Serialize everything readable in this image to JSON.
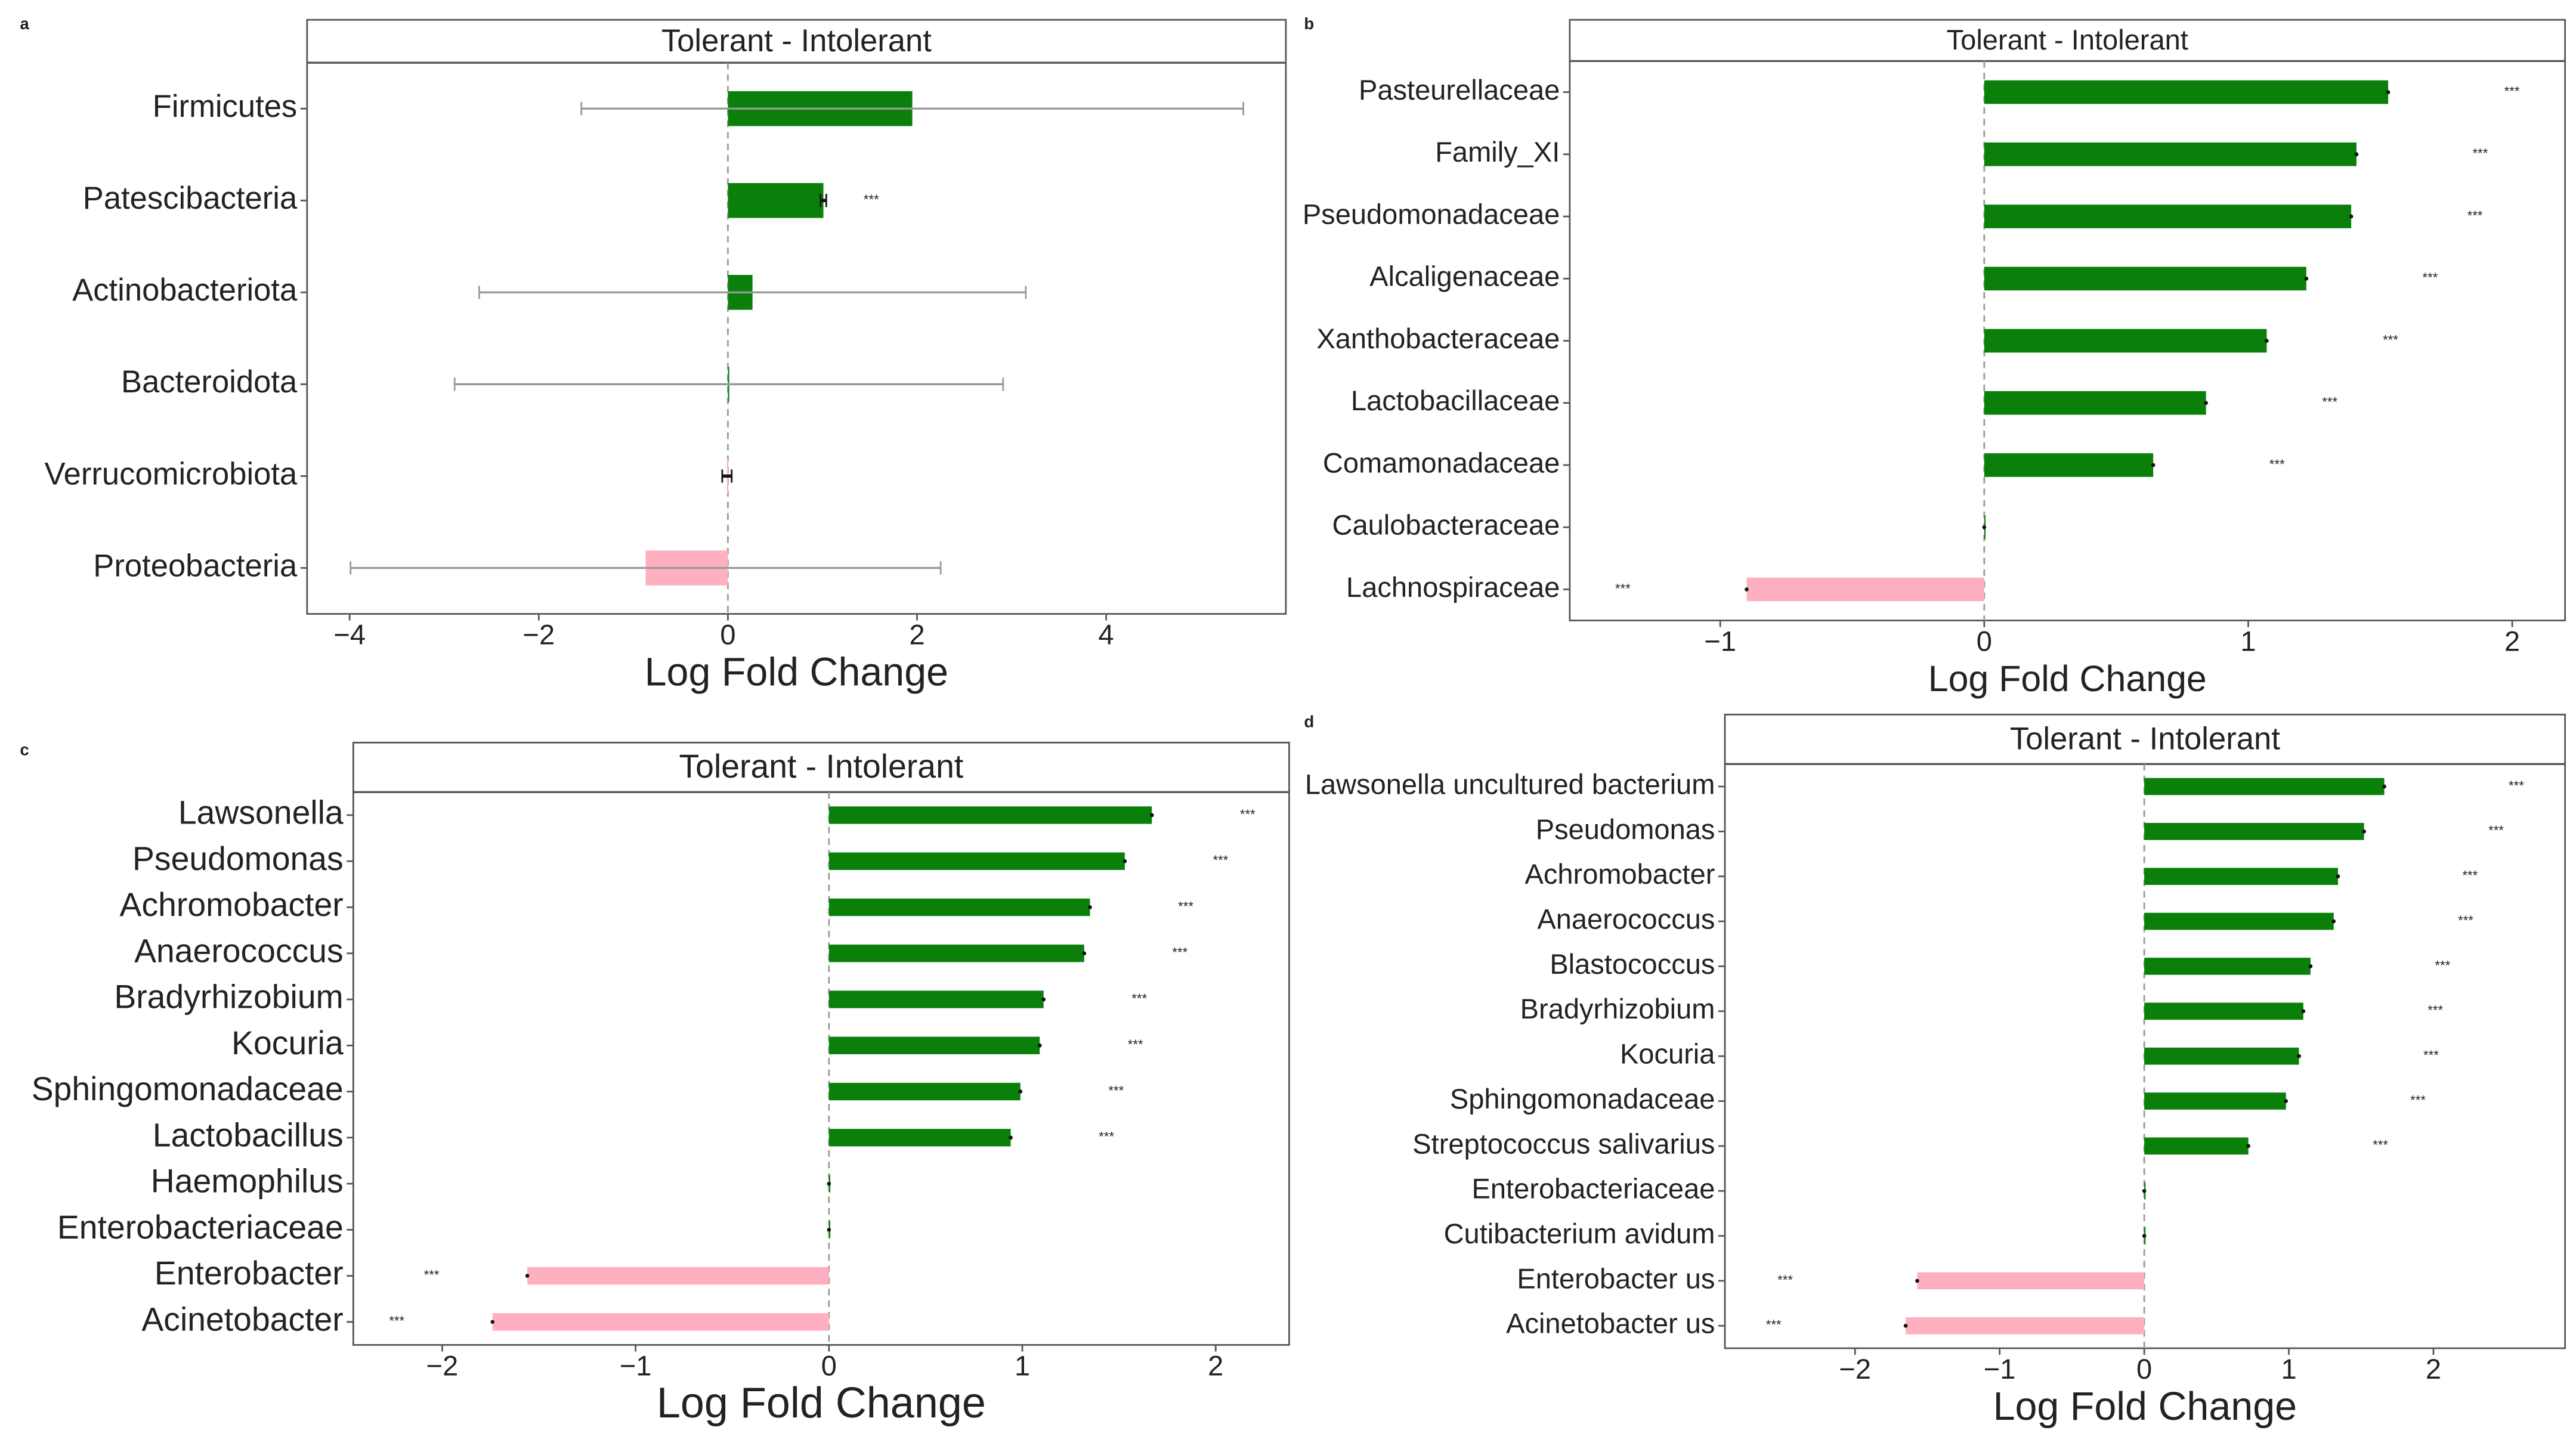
{
  "chart_data": [
    {
      "type": "bar",
      "orientation": "horizontal",
      "panel_label": "a",
      "title": "Tolerant - Intolerant",
      "xlabel": "Log Fold Change",
      "categories": [
        "Firmicutes",
        "Patescibacteria",
        "Actinobacteriota",
        "Bacteroidota",
        "Verrucomicrobiota",
        "Proteobacteria"
      ],
      "values": [
        1.95,
        1.01,
        0.26,
        0.01,
        -0.01,
        -0.87
      ],
      "errors": [
        3.5,
        0.03,
        2.89,
        2.9,
        0.05,
        3.12
      ],
      "annotations": [
        null,
        "***",
        null,
        null,
        null,
        null
      ],
      "xlim": [
        -4.45,
        5.9
      ],
      "xticks": [
        {
          "value": -4,
          "label": "−4"
        },
        {
          "value": -2,
          "label": "−2"
        },
        0,
        2,
        4
      ],
      "positive_color": "#0a800a",
      "negative_color": "#ffb0c0"
    },
    {
      "type": "bar",
      "orientation": "horizontal",
      "panel_label": "b",
      "title": "Tolerant - Intolerant",
      "xlabel": "Log Fold Change",
      "categories": [
        "Pasteurellaceae",
        "Family_XI",
        "Pseudomonadaceae",
        "Alcaligenaceae",
        "Xanthobacteraceae",
        "Lactobacillaceae",
        "Comamonadaceae",
        "Caulobacteraceae",
        "Lachnospiraceae"
      ],
      "values": [
        1.53,
        1.41,
        1.39,
        1.22,
        1.07,
        0.84,
        0.64,
        0,
        -0.9
      ],
      "annotations": [
        "***",
        "***",
        "***",
        "***",
        "***",
        "***",
        "***",
        null,
        "***"
      ],
      "xlim": [
        -1.57,
        2.2
      ],
      "xticks": [
        {
          "value": -1,
          "label": "−1"
        },
        0,
        1,
        2
      ],
      "positive_color": "#0a800a",
      "negative_color": "#ffb0c0"
    },
    {
      "type": "bar",
      "orientation": "horizontal",
      "panel_label": "c",
      "title": "Tolerant - Intolerant",
      "xlabel": "Log Fold Change",
      "categories": [
        "Lawsonella",
        "Pseudomonas",
        "Achromobacter",
        "Anaerococcus",
        "Bradyrhizobium",
        "Kocuria",
        "Sphingomonadaceae",
        "Lactobacillus",
        "Haemophilus",
        "Enterobacteriaceae",
        "Enterobacter",
        "Acinetobacter"
      ],
      "values": [
        1.67,
        1.53,
        1.35,
        1.32,
        1.11,
        1.09,
        0.99,
        0.94,
        0,
        0,
        -1.56,
        -1.74
      ],
      "annotations": [
        "***",
        "***",
        "***",
        "***",
        "***",
        "***",
        "***",
        "***",
        null,
        null,
        "***",
        "***"
      ],
      "xlim": [
        -2.46,
        2.38
      ],
      "xticks": [
        {
          "value": -2,
          "label": "−2"
        },
        {
          "value": -1,
          "label": "−1"
        },
        0,
        1,
        2
      ],
      "positive_color": "#0a800a",
      "negative_color": "#ffb0c0"
    },
    {
      "type": "bar",
      "orientation": "horizontal",
      "panel_label": "d",
      "title": "Tolerant - Intolerant",
      "xlabel": "Log Fold Change",
      "categories": [
        "Lawsonella uncultured bacterium",
        "Pseudomonas",
        "Achromobacter",
        "Anaerococcus",
        "Blastococcus",
        "Bradyrhizobium",
        "Kocuria",
        "Sphingomonadaceae",
        "Streptococcus salivarius",
        "Enterobacteriaceae",
        "Cutibacterium avidum",
        "Enterobacter us",
        "Acinetobacter us"
      ],
      "values": [
        1.66,
        1.52,
        1.34,
        1.31,
        1.15,
        1.1,
        1.07,
        0.98,
        0.72,
        0,
        0,
        -1.57,
        -1.65
      ],
      "annotations": [
        "***",
        "***",
        "***",
        "***",
        "***",
        "***",
        "***",
        "***",
        "***",
        null,
        null,
        "***",
        "***"
      ],
      "xlim": [
        -2.9,
        2.91
      ],
      "xticks": [
        {
          "value": -2,
          "label": "−2"
        },
        {
          "value": -1,
          "label": "−1"
        },
        0,
        1,
        2
      ],
      "positive_color": "#0a800a",
      "negative_color": "#ffb0c0"
    }
  ]
}
